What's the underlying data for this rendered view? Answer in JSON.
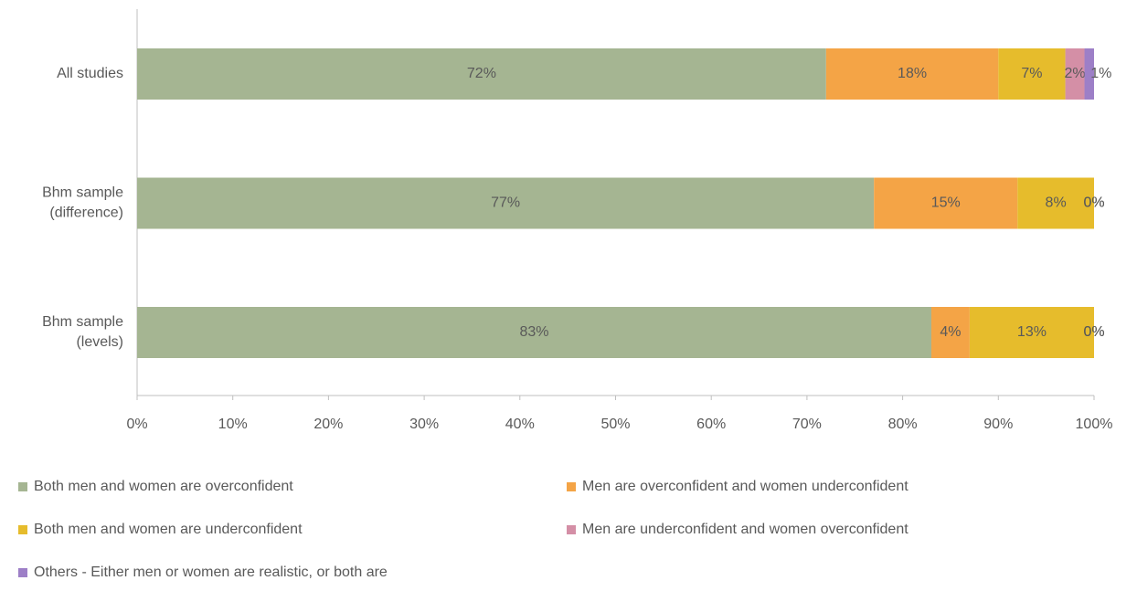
{
  "chart_data": {
    "type": "stacked-bar-horizontal",
    "categories": [
      [
        "All studies"
      ],
      [
        "Bhm sample",
        "(difference)"
      ],
      [
        "Bhm sample",
        "(levels)"
      ]
    ],
    "series": [
      {
        "name": "Both men and women are overconfident",
        "color": "#a5b592",
        "values": [
          72,
          77,
          83
        ],
        "value_labels": [
          "72%",
          "77%",
          "83%"
        ]
      },
      {
        "name": "Men are overconfident and women underconfident",
        "color": "#f4a446",
        "values": [
          18,
          15,
          4
        ],
        "value_labels": [
          "18%",
          "15%",
          "4%"
        ]
      },
      {
        "name": "Both men and women are underconfident",
        "color": "#e6bc2c",
        "values": [
          7,
          8,
          13
        ],
        "value_labels": [
          "7%",
          "8%",
          "13%"
        ]
      },
      {
        "name": "Men are underconfident and women overconfident",
        "color": "#d48fa6",
        "values": [
          2,
          0,
          0
        ],
        "value_labels": [
          "2%",
          "0%",
          "0%"
        ]
      },
      {
        "name": "Others - Either men or women are realistic, or both are",
        "color": "#9d7fc7",
        "values": [
          1,
          0,
          0
        ],
        "value_labels": [
          "1%",
          "0%",
          "0%"
        ]
      }
    ],
    "xlim": [
      0,
      100
    ],
    "xticks": [
      {
        "value": 0,
        "label": "0%"
      },
      {
        "value": 10,
        "label": "10%"
      },
      {
        "value": 20,
        "label": "20%"
      },
      {
        "value": 30,
        "label": "30%"
      },
      {
        "value": 40,
        "label": "40%"
      },
      {
        "value": 50,
        "label": "50%"
      },
      {
        "value": 60,
        "label": "60%"
      },
      {
        "value": 70,
        "label": "70%"
      },
      {
        "value": 80,
        "label": "80%"
      },
      {
        "value": 90,
        "label": "90%"
      },
      {
        "value": 100,
        "label": "100%"
      }
    ],
    "legend": "bottom"
  }
}
